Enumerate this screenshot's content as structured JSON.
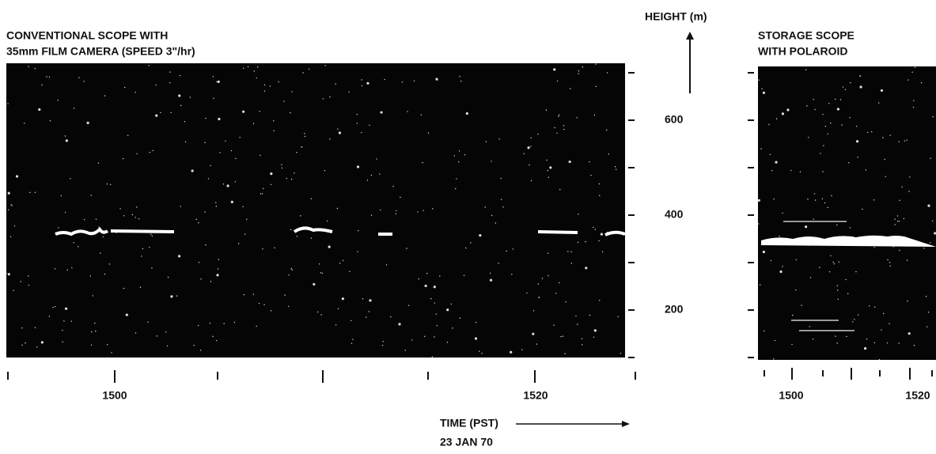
{
  "left_panel": {
    "title_lines": [
      "CONVENTIONAL SCOPE WITH",
      "35mm FILM CAMERA (SPEED 3\"/hr)"
    ],
    "time_labels": [
      "1500",
      "1520"
    ]
  },
  "right_panel": {
    "title_lines": [
      "STORAGE SCOPE",
      "WITH POLAROID"
    ],
    "time_labels": [
      "1500",
      "1520"
    ]
  },
  "height_axis": {
    "title": "HEIGHT (m)",
    "labels": [
      "600",
      "400",
      "200"
    ]
  },
  "time_axis": {
    "title": "TIME (PST)",
    "date": "23 JAN 70"
  }
}
